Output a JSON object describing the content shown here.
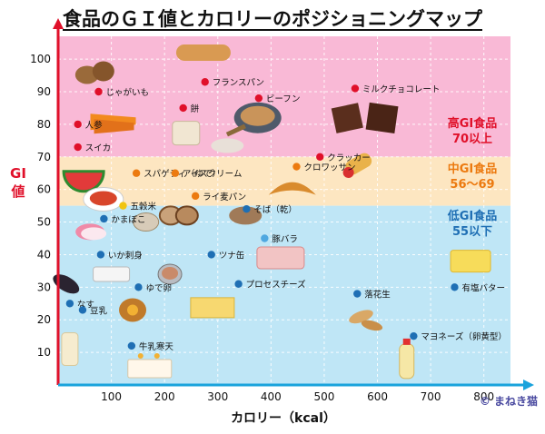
{
  "title": "食品のＧＩ値とカロリーのポジショニングマップ",
  "watermark": "© まねき猫",
  "chart_data": {
    "type": "scatter",
    "title": "食品のＧＩ値とカロリーのポジショニングマップ",
    "xlabel": "カロリー（kcal）",
    "ylabel": "GI値",
    "xlim": [
      0,
      850
    ],
    "ylim": [
      0,
      107
    ],
    "x_ticks": [
      "100",
      "200",
      "300",
      "400",
      "500",
      "600",
      "700",
      "800"
    ],
    "y_ticks": [
      "10",
      "20",
      "30",
      "40",
      "50",
      "60",
      "70",
      "80",
      "90",
      "100"
    ],
    "grid": true,
    "bands": [
      {
        "from": 70,
        "to": 107,
        "color": "#f9b9d6",
        "label_lines": [
          "高GI食品",
          "70以上"
        ],
        "label_color": "#e0102a"
      },
      {
        "from": 55,
        "to": 70,
        "color": "#fde6c1",
        "label_lines": [
          "中GI食品",
          "56～69"
        ],
        "label_color": "#ec7a10"
      },
      {
        "from": 0,
        "to": 55,
        "color": "#bfe6f6",
        "label_lines": [
          "低GI食品",
          "55以下"
        ],
        "label_color": "#1f6fb4"
      }
    ],
    "points": [
      {
        "label": "フランスパン",
        "x": 276,
        "y": 93,
        "color": "#e0102a"
      },
      {
        "label": "じゃがいも",
        "x": 76,
        "y": 90,
        "color": "#e0102a"
      },
      {
        "label": "ミルクチョコレート",
        "x": 558,
        "y": 91,
        "color": "#e0102a"
      },
      {
        "label": "ビーフン",
        "x": 377,
        "y": 88,
        "color": "#e0102a"
      },
      {
        "label": "餅",
        "x": 235,
        "y": 85,
        "color": "#e0102a"
      },
      {
        "label": "人参",
        "x": 37,
        "y": 80,
        "color": "#e0102a"
      },
      {
        "label": "スイカ",
        "x": 37,
        "y": 73,
        "color": "#e0102a"
      },
      {
        "label": "クラッカー",
        "x": 492,
        "y": 70,
        "color": "#e0102a"
      },
      {
        "label": "クロワッサン",
        "x": 448,
        "y": 67,
        "color": "#ec7a10"
      },
      {
        "label": "スパゲティ（ゆで）",
        "x": 147,
        "y": 65,
        "color": "#ec7a10"
      },
      {
        "label": "アイスクリーム",
        "x": 220,
        "y": 65,
        "color": "#ec7a10"
      },
      {
        "label": "ライ麦パン",
        "x": 258,
        "y": 58,
        "color": "#ec7a10"
      },
      {
        "label": "五穀米",
        "x": 122,
        "y": 55,
        "color": "#f1c40f"
      },
      {
        "label": "そば（乾）",
        "x": 354,
        "y": 54,
        "color": "#1f6fb4"
      },
      {
        "label": "かまぼこ",
        "x": 86,
        "y": 51,
        "color": "#1f6fb4"
      },
      {
        "label": "豚バラ",
        "x": 388,
        "y": 45,
        "color": "#4fa8e0"
      },
      {
        "label": "いか刺身",
        "x": 80,
        "y": 40,
        "color": "#1f6fb4"
      },
      {
        "label": "ツナ缶",
        "x": 288,
        "y": 40,
        "color": "#1f6fb4"
      },
      {
        "label": "プロセスチーズ",
        "x": 339,
        "y": 31,
        "color": "#1f6fb4"
      },
      {
        "label": "ゆで卵",
        "x": 151,
        "y": 30,
        "color": "#1f6fb4"
      },
      {
        "label": "有塩バター",
        "x": 745,
        "y": 30,
        "color": "#1f6fb4"
      },
      {
        "label": "落花生",
        "x": 562,
        "y": 28,
        "color": "#1f6fb4"
      },
      {
        "label": "なす",
        "x": 22,
        "y": 25,
        "color": "#1f6fb4"
      },
      {
        "label": "豆乳",
        "x": 46,
        "y": 23,
        "color": "#1f6fb4"
      },
      {
        "label": "マヨネーズ（卵黄型）",
        "x": 668,
        "y": 15,
        "color": "#1f6fb4"
      },
      {
        "label": "牛乳寒天",
        "x": 138,
        "y": 12,
        "color": "#1f6fb4"
      }
    ],
    "pictures": [
      {
        "name": "potato-picture",
        "x": 68,
        "y": 96
      },
      {
        "name": "bread-picture",
        "x": 273,
        "y": 102
      },
      {
        "name": "chocolate-picture",
        "x": 575,
        "y": 83
      },
      {
        "name": "beef-noodle-picture",
        "x": 375,
        "y": 82
      },
      {
        "name": "carrot-picture",
        "x": 105,
        "y": 81
      },
      {
        "name": "rice-cake-picture",
        "x": 242,
        "y": 77
      },
      {
        "name": "ice-cream-scoop-picture",
        "x": 318,
        "y": 74
      },
      {
        "name": "watermelon-picture",
        "x": 48,
        "y": 65
      },
      {
        "name": "cracker-roll-picture",
        "x": 566,
        "y": 68
      },
      {
        "name": "croissant-picture",
        "x": 440,
        "y": 60
      },
      {
        "name": "spaghetti-picture",
        "x": 85,
        "y": 57
      },
      {
        "name": "rye-bread-picture",
        "x": 225,
        "y": 52
      },
      {
        "name": "grain-rice-picture",
        "x": 165,
        "y": 50
      },
      {
        "name": "soba-picture",
        "x": 352,
        "y": 52
      },
      {
        "name": "kamaboko-picture",
        "x": 60,
        "y": 47
      },
      {
        "name": "pork-belly-picture",
        "x": 418,
        "y": 39
      },
      {
        "name": "squid-picture",
        "x": 100,
        "y": 34
      },
      {
        "name": "tuna-can-picture",
        "x": 210,
        "y": 34
      },
      {
        "name": "eggplant-picture",
        "x": 15,
        "y": 31
      },
      {
        "name": "egg-picture",
        "x": 140,
        "y": 23
      },
      {
        "name": "cheese-picture",
        "x": 290,
        "y": 24
      },
      {
        "name": "peanut-picture",
        "x": 580,
        "y": 21
      },
      {
        "name": "butter-block-picture",
        "x": 775,
        "y": 38
      },
      {
        "name": "soy-milk-picture",
        "x": 22,
        "y": 11
      },
      {
        "name": "mayonnaise-picture",
        "x": 655,
        "y": 7
      },
      {
        "name": "agar-jelly-picture",
        "x": 172,
        "y": 5
      }
    ]
  }
}
